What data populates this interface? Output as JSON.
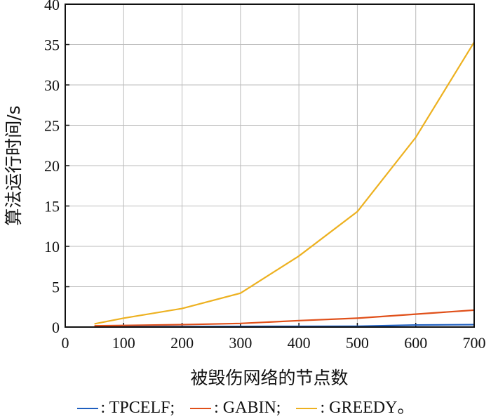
{
  "chart_data": {
    "type": "line",
    "title": "",
    "xlabel": "被毁伤网络的节点数",
    "ylabel": "算法运行时间/s",
    "xlim": [
      0,
      700
    ],
    "ylim": [
      0,
      40
    ],
    "xticks": [
      0,
      100,
      200,
      300,
      400,
      500,
      600,
      700
    ],
    "yticks": [
      0,
      5,
      10,
      15,
      20,
      25,
      30,
      35,
      40
    ],
    "grid": true,
    "legend_placement": "bottom",
    "series": [
      {
        "name": "TPCELF",
        "legend_label": ": TPCELF;",
        "color": "#1f5fbf",
        "x": [
          50,
          100,
          200,
          300,
          400,
          500,
          600,
          700
        ],
        "values": [
          0.05,
          0.05,
          0.06,
          0.08,
          0.09,
          0.1,
          0.25,
          0.3
        ]
      },
      {
        "name": "GABIN",
        "legend_label": ": GABIN;",
        "color": "#e0501a",
        "x": [
          50,
          100,
          200,
          300,
          400,
          500,
          600,
          700
        ],
        "values": [
          0.15,
          0.2,
          0.3,
          0.45,
          0.8,
          1.1,
          1.6,
          2.1
        ]
      },
      {
        "name": "GREEDY",
        "legend_label": ": GREEDY。",
        "color": "#edb120",
        "x": [
          50,
          100,
          200,
          300,
          400,
          500,
          600,
          700
        ],
        "values": [
          0.4,
          1.1,
          2.3,
          4.2,
          8.8,
          14.3,
          23.5,
          35.3
        ]
      }
    ]
  }
}
